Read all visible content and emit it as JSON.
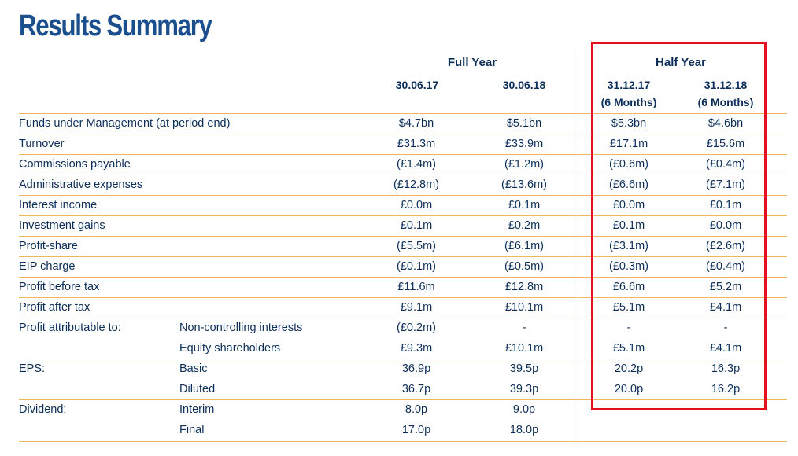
{
  "title": "Results Summary",
  "headers": {
    "full_year": "Full Year",
    "half_year": "Half Year",
    "col1": "30.06.17",
    "col2": "30.06.18",
    "col3": "31.12.17",
    "col3_sub": "(6 Months)",
    "col4": "31.12.18",
    "col4_sub": "(6 Months)"
  },
  "rows": [
    {
      "label": "Funds under Management (at period end)",
      "sub": "",
      "values": [
        "$4.7bn",
        "$5.1bn",
        "$5.3bn",
        "$4.6bn"
      ]
    },
    {
      "label": "Turnover",
      "sub": "",
      "values": [
        "£31.3m",
        "£33.9m",
        "£17.1m",
        "£15.6m"
      ]
    },
    {
      "label": "Commissions payable",
      "sub": "",
      "values": [
        "(£1.4m)",
        "(£1.2m)",
        "(£0.6m)",
        "(£0.4m)"
      ]
    },
    {
      "label": "Administrative expenses",
      "sub": "",
      "values": [
        "(£12.8m)",
        "(£13.6m)",
        "(£6.6m)",
        "(£7.1m)"
      ]
    },
    {
      "label": "Interest income",
      "sub": "",
      "values": [
        "£0.0m",
        "£0.1m",
        "£0.0m",
        "£0.1m"
      ]
    },
    {
      "label": "Investment gains",
      "sub": "",
      "values": [
        "£0.1m",
        "£0.2m",
        "£0.1m",
        "£0.0m"
      ]
    },
    {
      "label": "Profit-share",
      "sub": "",
      "values": [
        "(£5.5m)",
        "(£6.1m)",
        "(£3.1m)",
        "(£2.6m)"
      ]
    },
    {
      "label": "EIP charge",
      "sub": "",
      "values": [
        "(£0.1m)",
        "(£0.5m)",
        "(£0.3m)",
        "(£0.4m)"
      ]
    },
    {
      "label": "Profit before tax",
      "sub": "",
      "values": [
        "£11.6m",
        "£12.8m",
        "£6.6m",
        "£5.2m"
      ]
    },
    {
      "label": "Profit after tax",
      "sub": "",
      "values": [
        "£9.1m",
        "£10.1m",
        "£5.1m",
        "£4.1m"
      ]
    },
    {
      "label": "Profit attributable to:",
      "sub": "Non-controlling interests",
      "values": [
        "(£0.2m)",
        "-",
        "-",
        "-"
      ]
    },
    {
      "label": "",
      "sub": "Equity shareholders",
      "values": [
        "£9.3m",
        "£10.1m",
        "£5.1m",
        "£4.1m"
      ]
    },
    {
      "label": "EPS:",
      "sub": "Basic",
      "values": [
        "36.9p",
        "39.5p",
        "20.2p",
        "16.3p"
      ]
    },
    {
      "label": "",
      "sub": "Diluted",
      "values": [
        "36.7p",
        "39.3p",
        "20.0p",
        "16.2p"
      ]
    },
    {
      "label": "Dividend:",
      "sub": "Interim",
      "values": [
        "8.0p",
        "9.0p",
        "",
        ""
      ]
    },
    {
      "label": "",
      "sub": "Final",
      "values": [
        "17.0p",
        "18.0p",
        "",
        ""
      ]
    }
  ],
  "colors": {
    "title": "#1b4e8c",
    "text": "#0b2e59",
    "rule": "#f3b45f",
    "highlight": "#e3101f"
  }
}
